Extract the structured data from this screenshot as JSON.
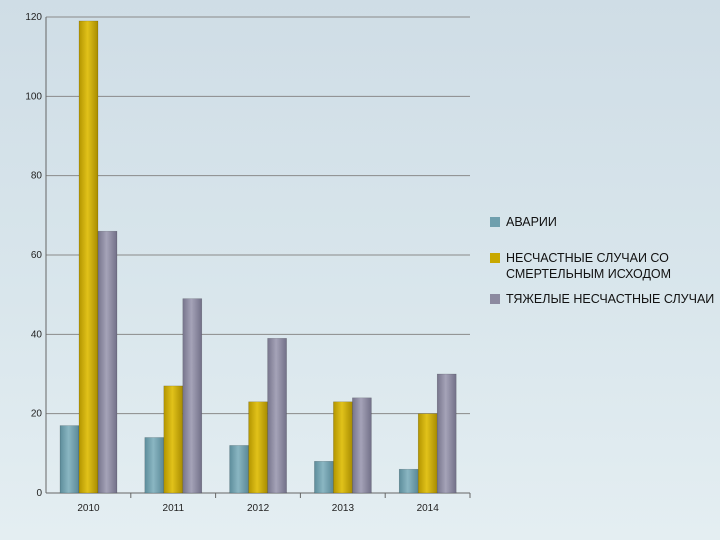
{
  "chart_data": {
    "type": "bar",
    "title": "",
    "xlabel": "",
    "ylabel": "",
    "categories": [
      "2010",
      "2011",
      "2012",
      "2013",
      "2014"
    ],
    "ylim": [
      0,
      120
    ],
    "yticks": [
      "0",
      "20",
      "40",
      "60",
      "80",
      "100",
      "120"
    ],
    "grid": true,
    "legend_position": "right",
    "series": [
      {
        "name": "АВАРИИ",
        "values": [
          17,
          14,
          12,
          8,
          6
        ],
        "color": "#6f9fad"
      },
      {
        "name": "НЕСЧАСТНЫЕ СЛУЧАИ СО СМЕРТЕЛЬНЫМ ИСХОДОМ",
        "values": [
          119,
          27,
          23,
          23,
          20
        ],
        "color": "#c8a800"
      },
      {
        "name": "ТЯЖЕЛЫЕ НЕСЧАСТНЫЕ СЛУЧАИ",
        "values": [
          66,
          49,
          39,
          24,
          30
        ],
        "color": "#8c8aa0"
      }
    ]
  }
}
